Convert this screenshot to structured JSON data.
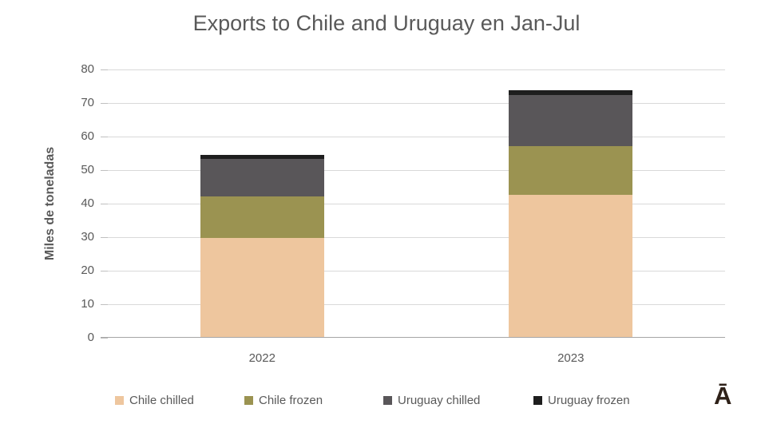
{
  "chart_data": {
    "type": "bar",
    "stacked": true,
    "title": "Exports to Chile and Uruguay en Jan-Jul",
    "ylabel": "Miles de toneladas",
    "categories": [
      "2022",
      "2023"
    ],
    "series": [
      {
        "name": "Chile chilled",
        "color": "#eec69e",
        "values": [
          29.6,
          42.4
        ]
      },
      {
        "name": "Chile frozen",
        "color": "#9b9351",
        "values": [
          12.3,
          14.4
        ]
      },
      {
        "name": "Uruguay chilled",
        "color": "#595659",
        "values": [
          11.1,
          15.4
        ]
      },
      {
        "name": "Uruguay frozen",
        "color": "#1e1e1e",
        "values": [
          1.2,
          1.3
        ]
      }
    ],
    "stack_totals": [
      54.2,
      73.5
    ],
    "ylim": [
      0,
      80
    ],
    "ytick_step": 10,
    "yticks": [
      0,
      10,
      20,
      30,
      40,
      50,
      60,
      70,
      80
    ],
    "grid": true,
    "legend_position": "bottom",
    "text_color": "#595959",
    "grid_color": "#d9d9d9",
    "axis_color": "#a6a6a6"
  },
  "logo": {
    "glyph": "Ā",
    "color": "#2e2118"
  }
}
